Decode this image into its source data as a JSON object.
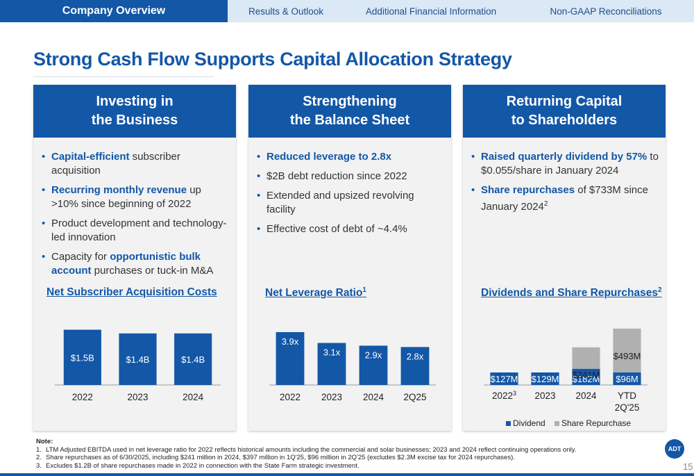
{
  "nav": {
    "tabs": [
      {
        "label": "Company Overview",
        "active": true
      },
      {
        "label": "Results & Outlook"
      },
      {
        "label": "Additional Financial Information"
      },
      {
        "label": "Non-GAAP Reconciliations"
      }
    ]
  },
  "title": "Strong Cash Flow Supports Capital Allocation Strategy",
  "panels": [
    {
      "head1": "Investing in",
      "head2": "the Business",
      "chart_title": "Net Subscriber Acquisition Costs"
    },
    {
      "head1": "Strengthening",
      "head2": "the Balance Sheet",
      "chart_title": "Net Leverage Ratio",
      "chart_title_sup": "1"
    },
    {
      "head1": "Returning Capital",
      "head2": "to Shareholders",
      "chart_title": "Dividends and Share Repurchases",
      "chart_title_sup": "2"
    }
  ],
  "bullets": {
    "p1b1_bold": "Capital-efficient",
    "p1b1_rest": " subscriber acquisition",
    "p1b2_bold": "Recurring monthly revenue",
    "p1b2_rest": " up >10% since beginning of 2022",
    "p1b3": "Product development and technology-led innovation",
    "p1b4_pre": "Capacity for ",
    "p1b4_bold": "opportunistic bulk account",
    "p1b4_rest": " purchases or tuck-in M&A",
    "p2b1_bold": "Reduced leverage to 2.8x",
    "p2b2": "$2B debt reduction since 2022",
    "p2b3": "Extended and upsized revolving facility",
    "p2b4": "Effective cost of debt of ~4.4%",
    "p3b1_bold": "Raised quarterly dividend by 57%",
    "p3b1_rest": " to $0.055/share in January 2024",
    "p3b2_bold": "Share repurchases",
    "p3b2_rest": " of $733M since January 2024",
    "p3b2_sup": "2"
  },
  "chart_data": [
    {
      "type": "bar",
      "categories": [
        "2022",
        "2023",
        "2024"
      ],
      "values": [
        1.5,
        1.4,
        1.4
      ],
      "labels": [
        "$1.5B",
        "$1.4B",
        "$1.4B"
      ],
      "color": "#1357a7"
    },
    {
      "type": "bar",
      "categories": [
        "2022",
        "2023",
        "2024",
        "2Q25"
      ],
      "values": [
        3.9,
        3.1,
        2.9,
        2.8
      ],
      "labels": [
        "3.9x",
        "3.1x",
        "2.9x",
        "2.8x"
      ],
      "color": "#1357a7"
    },
    {
      "type": "bar",
      "stacked": true,
      "categories": [
        "2022",
        "2023",
        "2024",
        "YTD 2Q'25"
      ],
      "category_sup": [
        "3",
        "",
        "",
        ""
      ],
      "series": [
        {
          "name": "Dividend",
          "values": [
            127,
            129,
            182,
            96
          ],
          "labels": [
            "$127M",
            "$129M",
            "$182M",
            "$96M"
          ],
          "color": "#1357a7"
        },
        {
          "name": "Share Repurchase",
          "values": [
            0,
            0,
            241,
            493
          ],
          "labels": [
            "",
            "",
            "$241M",
            "$493M"
          ],
          "color": "#b0b0b0"
        }
      ],
      "legend_position": "bottom"
    }
  ],
  "notes": {
    "heading": "Note:",
    "items": [
      {
        "num": "1.",
        "text": "LTM Adjusted EBITDA used in net leverage ratio for 2022 reflects historical amounts including the commercial and solar businesses; 2023 and 2024 reflect continuing operations only."
      },
      {
        "num": "2.",
        "text": "Share repurchases as of 6/30/2025, including $241 million in 2024, $397 million in 1Q'25, $96 million in 2Q'25 (excludes $2.3M excise tax for 2024 repurchases)."
      },
      {
        "num": "3.",
        "text": "Excludes $1.2B of share repurchases made in 2022 in connection with the State Farm strategic investment."
      }
    ]
  },
  "logo_text": "ADT",
  "page_number": "15"
}
